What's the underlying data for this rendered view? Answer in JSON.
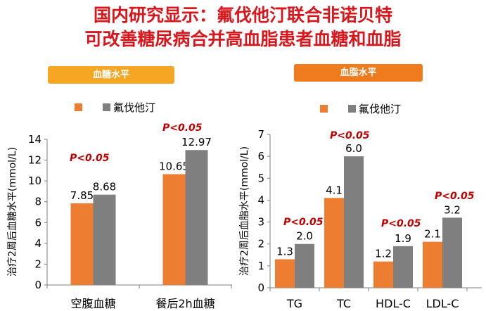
{
  "title_line1": "国内研究显示：氟伐他汀联合非诺贝特",
  "title_line2": "可改善糖尿病合并高血脂患者血糖和血脂",
  "colors": {
    "series1": "#ed7d31",
    "series2": "#7f7f7f",
    "title": "#d9161c",
    "pvalue": "#c00000"
  },
  "chart_data": [
    {
      "type": "bar",
      "header": "血糖水平",
      "ylabel": "治疗2周后血糖水平(mmol/L)",
      "ylim": [
        0,
        14
      ],
      "yticks": [
        0,
        2,
        4,
        6,
        8,
        10,
        12,
        14
      ],
      "categories": [
        "空腹血糖",
        "餐后2h血糖"
      ],
      "series": [
        {
          "name": "",
          "values": [
            7.85,
            10.65
          ]
        },
        {
          "name": "氟伐他汀",
          "values": [
            8.68,
            12.97
          ]
        }
      ],
      "data_labels": [
        [
          "7.85",
          "10.65"
        ],
        [
          "8.68",
          "12.97"
        ]
      ],
      "annotations": [
        "P<0.05",
        "P<0.05"
      ],
      "legend": "top"
    },
    {
      "type": "bar",
      "header": "血脂水平",
      "ylabel": "治疗2周后血脂水平(mmol/L)",
      "ylim": [
        0,
        7
      ],
      "yticks": [
        0,
        1,
        2,
        3,
        4,
        5,
        6,
        7
      ],
      "categories": [
        "TG",
        "TC",
        "HDL-C",
        "LDL-C"
      ],
      "series": [
        {
          "name": "",
          "values": [
            1.3,
            4.1,
            1.2,
            2.1
          ]
        },
        {
          "name": "氟伐他汀",
          "values": [
            2.0,
            6.0,
            1.9,
            3.2
          ]
        }
      ],
      "data_labels": [
        [
          "1.3",
          "4.1",
          "1.2",
          "2.1"
        ],
        [
          "2.0",
          "6.0",
          "1.9",
          "3.2"
        ]
      ],
      "annotations": [
        "P<0.05",
        "P<0.05",
        "P<0.05",
        "P<0.05"
      ],
      "legend": "top"
    }
  ]
}
